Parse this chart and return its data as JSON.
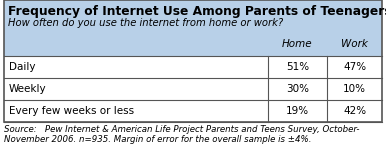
{
  "title": "Frequency of Internet Use Among Parents of Teenagers",
  "subtitle": "How often do you use the internet from home or work?",
  "col_headers": [
    "Home",
    "Work"
  ],
  "rows": [
    {
      "label": "Daily",
      "home": "51%",
      "work": "47%"
    },
    {
      "label": "Weekly",
      "home": "30%",
      "work": "10%"
    },
    {
      "label": "Every few weeks or less",
      "home": "19%",
      "work": "42%"
    }
  ],
  "source_line1": "Source:   Pew Internet & American Life Project Parents and Teens Survey, October-",
  "source_line2": "November 2006. n=935. Margin of error for the overall sample is ±4%.",
  "header_bg": "#b8d0e8",
  "table_bg": "#ffffff",
  "outer_bg": "#ffffff",
  "border_color": "#555555",
  "title_fontsize": 8.8,
  "subtitle_fontsize": 7.2,
  "header_fontsize": 7.5,
  "cell_fontsize": 7.5,
  "source_fontsize": 6.2,
  "fig_width": 3.86,
  "fig_height": 1.51,
  "dpi": 100
}
